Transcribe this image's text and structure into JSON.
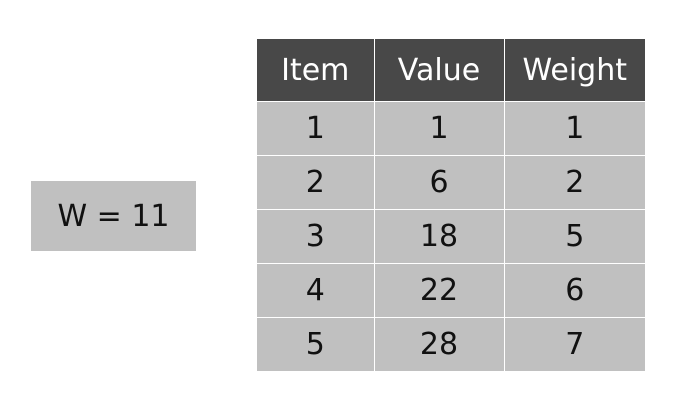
{
  "capacity": {
    "label": "W = 11"
  },
  "table": {
    "headers": [
      "Item",
      "Value",
      "Weight"
    ],
    "rows": [
      [
        "1",
        "1",
        "1"
      ],
      [
        "2",
        "6",
        "2"
      ],
      [
        "3",
        "18",
        "5"
      ],
      [
        "4",
        "22",
        "6"
      ],
      [
        "5",
        "28",
        "7"
      ]
    ]
  },
  "colors": {
    "header_bg": "#484848",
    "cell_bg": "#c0c0c0",
    "header_text": "#ffffff"
  }
}
